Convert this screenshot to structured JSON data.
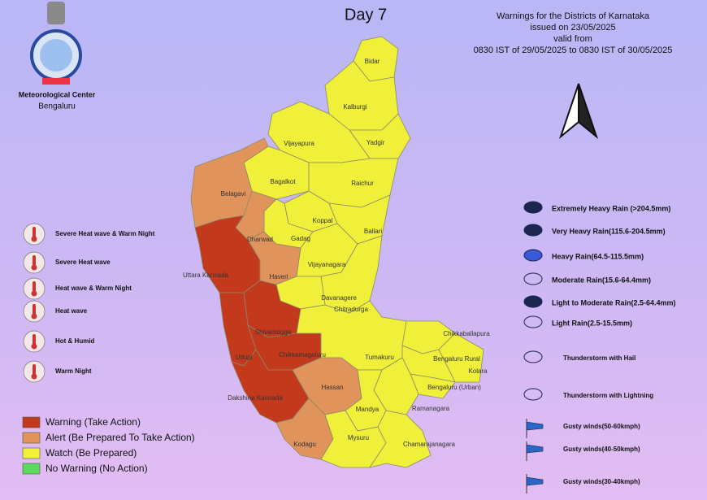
{
  "header": {
    "title": "Day 7",
    "org": "Meteorological Center",
    "city": "Bengaluru",
    "lines": [
      "Warnings for the Districts of Karnataka",
      "issued on 23/05/2025",
      "valid from",
      "0830 IST of 29/05/2025 to 0830 IST of 30/05/2025"
    ]
  },
  "heat_legend": [
    "Severe Heat wave & Warm Night",
    "Severe Heat wave",
    "Heat wave & Warm Night",
    "Heat wave",
    "Hot & Humid",
    "Warm Night"
  ],
  "warning_legend": [
    {
      "label": "Warning (Take Action)",
      "color": "#c2391c"
    },
    {
      "label": "Alert (Be Prepared To Take Action)",
      "color": "#e0935a"
    },
    {
      "label": "Watch (Be Prepared)",
      "color": "#f0f03a"
    },
    {
      "label": "No Warning (No Action)",
      "color": "#5fd85f"
    }
  ],
  "weather_legend": [
    "Extremely Heavy Rain (>204.5mm)",
    "Very Heavy Rain(115.6-204.5mm)",
    "Heavy Rain(64.5-115.5mm)",
    "Moderate Rain(15.6-64.4mm)",
    "Light to Moderate Rain(2.5-64.4mm)",
    "Light Rain(2.5-15.5mm)",
    "Thunderstorm with  Hail",
    "Thunderstorm with Lightning",
    "Gusty winds(50-60kmph)",
    "Gusty winds(40-50kmph)",
    "Gusty winds(30-40kmph)"
  ],
  "districts": [
    {
      "name": "Bidar",
      "color": "#f0f03a"
    },
    {
      "name": "Kalburgi",
      "color": "#f0f03a"
    },
    {
      "name": "Yadgir",
      "color": "#f0f03a"
    },
    {
      "name": "Vijayapura",
      "color": "#f0f03a"
    },
    {
      "name": "Bagalkot",
      "color": "#f0f03a"
    },
    {
      "name": "Raichur",
      "color": "#f0f03a"
    },
    {
      "name": "Belagavi",
      "color": "#e0935a"
    },
    {
      "name": "Koppal",
      "color": "#f0f03a"
    },
    {
      "name": "Ballari",
      "color": "#f0f03a"
    },
    {
      "name": "Gadag",
      "color": "#f0f03a"
    },
    {
      "name": "Dharwad",
      "color": "#e0935a"
    },
    {
      "name": "Uttara Kannada",
      "color": "#c2391c"
    },
    {
      "name": "Haveri",
      "color": "#e0935a"
    },
    {
      "name": "Vijayanagara",
      "color": "#f0f03a"
    },
    {
      "name": "Chitradurga",
      "color": "#f0f03a"
    },
    {
      "name": "Davanagere",
      "color": "#f0f03a"
    },
    {
      "name": "Shivamogga",
      "color": "#c2391c"
    },
    {
      "name": "Udupi",
      "color": "#c2391c"
    },
    {
      "name": "Chikkamagaluru",
      "color": "#c2391c"
    },
    {
      "name": "Tumakuru",
      "color": "#f0f03a"
    },
    {
      "name": "Chikkaballapura",
      "color": "#f0f03a"
    },
    {
      "name": "Kolara",
      "color": "#f0f03a"
    },
    {
      "name": "Bengaluru Rural",
      "color": "#f0f03a"
    },
    {
      "name": "Bengaluru (Urban)",
      "color": "#f0f03a"
    },
    {
      "name": "Ramanagara",
      "color": "#f0f03a"
    },
    {
      "name": "Hassan",
      "color": "#e0935a"
    },
    {
      "name": "Dakshina Kannada",
      "color": "#c2391c"
    },
    {
      "name": "Kodagu",
      "color": "#e0935a"
    },
    {
      "name": "Mandya",
      "color": "#f0f03a"
    },
    {
      "name": "Mysuru",
      "color": "#f0f03a"
    },
    {
      "name": "Chamarajanagara",
      "color": "#f0f03a"
    }
  ]
}
